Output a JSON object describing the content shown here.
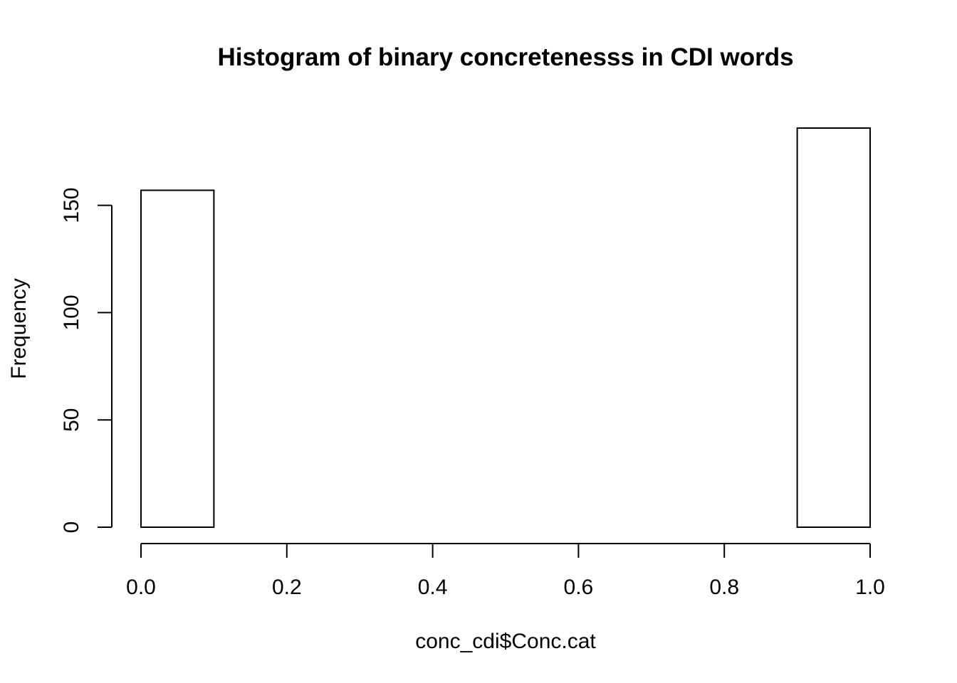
{
  "chart_data": {
    "type": "histogram",
    "title": "Histogram of binary concretenesss in CDI words",
    "xlabel": "conc_cdi$Conc.cat",
    "ylabel": "Frequency",
    "bins": [
      {
        "x0": 0.0,
        "x1": 0.1,
        "count": 157
      },
      {
        "x0": 0.1,
        "x1": 0.2,
        "count": 0
      },
      {
        "x0": 0.2,
        "x1": 0.3,
        "count": 0
      },
      {
        "x0": 0.3,
        "x1": 0.4,
        "count": 0
      },
      {
        "x0": 0.4,
        "x1": 0.5,
        "count": 0
      },
      {
        "x0": 0.5,
        "x1": 0.6,
        "count": 0
      },
      {
        "x0": 0.6,
        "x1": 0.7,
        "count": 0
      },
      {
        "x0": 0.7,
        "x1": 0.8,
        "count": 0
      },
      {
        "x0": 0.8,
        "x1": 0.9,
        "count": 0
      },
      {
        "x0": 0.9,
        "x1": 1.0,
        "count": 186
      }
    ],
    "xlim": [
      0.0,
      1.0
    ],
    "ylim": [
      0,
      186
    ],
    "xticks": [
      {
        "value": 0.0,
        "label": "0.0"
      },
      {
        "value": 0.2,
        "label": "0.2"
      },
      {
        "value": 0.4,
        "label": "0.4"
      },
      {
        "value": 0.6,
        "label": "0.6"
      },
      {
        "value": 0.8,
        "label": "0.8"
      },
      {
        "value": 1.0,
        "label": "1.0"
      }
    ],
    "yticks": [
      {
        "value": 0,
        "label": "0"
      },
      {
        "value": 50,
        "label": "50"
      },
      {
        "value": 100,
        "label": "100"
      },
      {
        "value": 150,
        "label": "150"
      }
    ],
    "grid": false,
    "legend": "none",
    "bar_fill": "#ffffff",
    "bar_stroke": "#000000"
  }
}
